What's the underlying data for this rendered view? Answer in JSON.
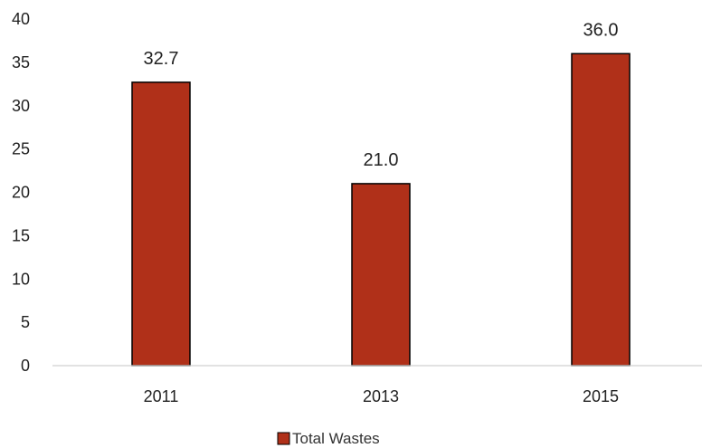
{
  "chart_data": {
    "type": "bar",
    "categories": [
      "2011",
      "2013",
      "2015"
    ],
    "series": [
      {
        "name": "Total Wastes",
        "values": [
          32.7,
          21.0,
          36.0
        ],
        "color": "#B03019",
        "border": "#000000"
      }
    ],
    "data_labels": [
      "32.7",
      "21.0",
      "36.0"
    ],
    "title": "",
    "xlabel": "",
    "ylabel": "",
    "ylim": [
      0,
      40
    ],
    "yticks": [
      0,
      5,
      10,
      15,
      20,
      25,
      30,
      35,
      40
    ],
    "ytick_labels": [
      "0",
      "5",
      "10",
      "15",
      "20",
      "25",
      "30",
      "35",
      "40"
    ],
    "grid": false,
    "legend": {
      "position": "bottom",
      "entries": [
        "Total Wastes"
      ]
    }
  }
}
